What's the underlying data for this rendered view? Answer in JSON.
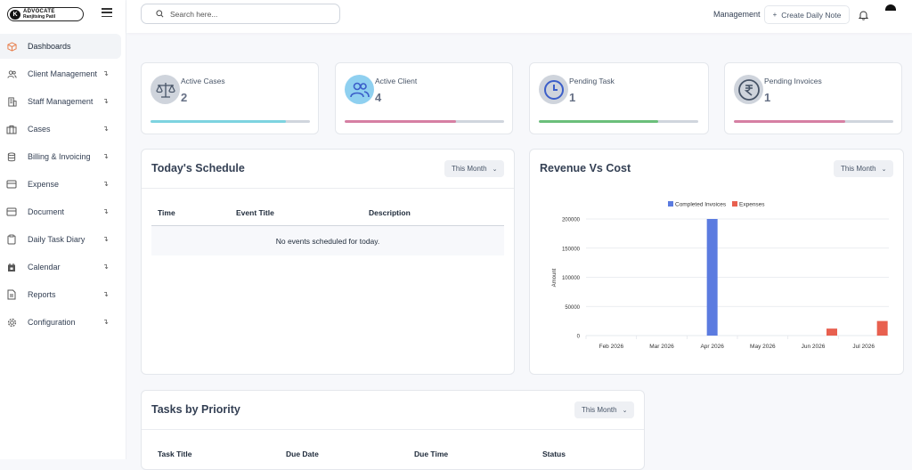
{
  "logo": {
    "badge": "K",
    "line1": "ADVOCATE",
    "line2": "Ranjitsing Patil"
  },
  "sidebar": {
    "items": [
      {
        "label": "Dashboards",
        "icon": "cube-icon",
        "active": true,
        "arrow": false
      },
      {
        "label": "Client Management",
        "icon": "users-icon",
        "active": false,
        "arrow": true
      },
      {
        "label": "Staff Management",
        "icon": "building-icon",
        "active": false,
        "arrow": true
      },
      {
        "label": "Cases",
        "icon": "briefcase-icon",
        "active": false,
        "arrow": true
      },
      {
        "label": "Billing & Invoicing",
        "icon": "database-icon",
        "active": false,
        "arrow": true
      },
      {
        "label": "Expense",
        "icon": "credit-card-icon",
        "active": false,
        "arrow": true
      },
      {
        "label": "Document",
        "icon": "document-icon",
        "active": false,
        "arrow": true
      },
      {
        "label": "Daily Task Diary",
        "icon": "clipboard-icon",
        "active": false,
        "arrow": true
      },
      {
        "label": "Calendar",
        "icon": "calendar-icon",
        "active": false,
        "arrow": true
      },
      {
        "label": "Reports",
        "icon": "report-icon",
        "active": false,
        "arrow": true
      },
      {
        "label": "Configuration",
        "icon": "gear-icon",
        "active": false,
        "arrow": true
      }
    ]
  },
  "topbar": {
    "search_placeholder": "Search here...",
    "management": "Management",
    "daily_note": "Create Daily Note"
  },
  "stats": [
    {
      "label": "Active Cases",
      "value": "2",
      "icon": "scales-icon",
      "icon_bg": "#cfd4dc",
      "bar_color": "#7dd3e0",
      "fill": 0.85
    },
    {
      "label": "Active Client",
      "value": "4",
      "icon": "users-icon",
      "icon_bg": "#8fd0f0",
      "bar_color": "#d67fa3",
      "fill": 0.7
    },
    {
      "label": "Pending Task",
      "value": "1",
      "icon": "clock-icon",
      "icon_bg": "#cfd4dc",
      "bar_color": "#6bbf7a",
      "fill": 0.75
    },
    {
      "label": "Pending Invoices",
      "value": "1",
      "icon": "rupee-icon",
      "icon_bg": "#cfd4dc",
      "bar_color": "#d67fa3",
      "fill": 0.7
    }
  ],
  "schedule": {
    "title": "Today's Schedule",
    "filter": "This Month",
    "columns": [
      "Time",
      "Event Title",
      "Description"
    ],
    "empty": "No events scheduled for today."
  },
  "revenue": {
    "title": "Revenue Vs Cost",
    "filter": "This Month"
  },
  "tasks": {
    "title": "Tasks by Priority",
    "filter": "This Month",
    "columns": [
      "Task Title",
      "Due Date",
      "Due Time",
      "Status"
    ]
  },
  "chart_data": {
    "type": "bar",
    "categories": [
      "Feb 2026",
      "Mar 2026",
      "Apr 2026",
      "May 2026",
      "Jun 2026",
      "Jul 2026"
    ],
    "series": [
      {
        "name": "Completed Invoices",
        "color": "#5b7be0",
        "values": [
          0,
          0,
          200000,
          0,
          0,
          0
        ]
      },
      {
        "name": "Expenses",
        "color": "#e8604f",
        "values": [
          0,
          0,
          0,
          0,
          12000,
          25000
        ]
      }
    ],
    "title": "",
    "xlabel": "",
    "ylabel": "Amount",
    "ylim": [
      0,
      200000
    ],
    "yticks": [
      "0",
      "50000",
      "100000",
      "150000",
      "200000"
    ],
    "legend": "top-center",
    "grid": true
  }
}
